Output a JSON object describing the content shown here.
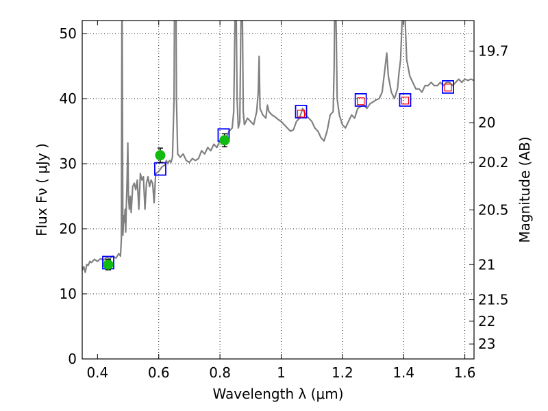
{
  "chart_data": {
    "type": "line",
    "title": "",
    "xlabel": "Wavelength  λ (μm)",
    "ylabel": "Flux  Fν  ( μJy )",
    "ylabel_right": "Magnitude (AB)",
    "xlim": [
      0.35,
      1.63
    ],
    "ylim": [
      0,
      52
    ],
    "grid": true,
    "x_ticks": [
      0.4,
      0.6,
      0.8,
      1.0,
      1.2,
      1.4,
      1.6
    ],
    "x_tick_labels": [
      "0.4",
      "0.6",
      "0.8",
      "1",
      "1.2",
      "1.4",
      "1.6"
    ],
    "y_ticks": [
      0,
      10,
      20,
      30,
      40,
      50
    ],
    "y_tick_labels": [
      "0",
      "10",
      "20",
      "30",
      "40",
      "50"
    ],
    "right_ticks": [
      {
        "label": "19.7",
        "flux": 47.3
      },
      {
        "label": "20",
        "flux": 36.3
      },
      {
        "label": "20.2",
        "flux": 30.2
      },
      {
        "label": "20.5",
        "flux": 22.9
      },
      {
        "label": "21",
        "flux": 14.5
      },
      {
        "label": "21.5",
        "flux": 9.1
      },
      {
        "label": "22",
        "flux": 5.8
      },
      {
        "label": "23",
        "flux": 2.3
      }
    ],
    "colors": {
      "spectrum": "#808080",
      "model_box": "#0000ff",
      "nir_point": "#ff0000",
      "optical_point": "#11bb11",
      "error_bar": "#000000"
    },
    "series": [
      {
        "kind": "spectrum",
        "points": [
          [
            0.35,
            13.6
          ],
          [
            0.355,
            14.2
          ],
          [
            0.36,
            13.3
          ],
          [
            0.365,
            14.5
          ],
          [
            0.37,
            14.4
          ],
          [
            0.375,
            15.0
          ],
          [
            0.38,
            14.8
          ],
          [
            0.39,
            15.3
          ],
          [
            0.4,
            15.0
          ],
          [
            0.41,
            15.4
          ],
          [
            0.42,
            15.2
          ],
          [
            0.43,
            15.6
          ],
          [
            0.44,
            15.4
          ],
          [
            0.45,
            15.8
          ],
          [
            0.46,
            15.5
          ],
          [
            0.47,
            16.2
          ],
          [
            0.475,
            15.8
          ],
          [
            0.478,
            18.5
          ],
          [
            0.48,
            60
          ],
          [
            0.483,
            19.0
          ],
          [
            0.486,
            22
          ],
          [
            0.488,
            21
          ],
          [
            0.49,
            23
          ],
          [
            0.492,
            19.5
          ],
          [
            0.494,
            23.5
          ],
          [
            0.496,
            26
          ],
          [
            0.499,
            33.2
          ],
          [
            0.501,
            25
          ],
          [
            0.504,
            23.0
          ],
          [
            0.507,
            25
          ],
          [
            0.51,
            22.5
          ],
          [
            0.515,
            26.5
          ],
          [
            0.52,
            27
          ],
          [
            0.525,
            26
          ],
          [
            0.53,
            27.5
          ],
          [
            0.535,
            23.0
          ],
          [
            0.54,
            28.5
          ],
          [
            0.545,
            27.5
          ],
          [
            0.55,
            28
          ],
          [
            0.555,
            23
          ],
          [
            0.56,
            27
          ],
          [
            0.565,
            28
          ],
          [
            0.57,
            26.5
          ],
          [
            0.575,
            27.5
          ],
          [
            0.58,
            27
          ],
          [
            0.585,
            24
          ],
          [
            0.59,
            28.5
          ],
          [
            0.6,
            28.8
          ],
          [
            0.61,
            29.5
          ],
          [
            0.62,
            29.8
          ],
          [
            0.625,
            30.5
          ],
          [
            0.63,
            30.0
          ],
          [
            0.635,
            30.5
          ],
          [
            0.64,
            30.2
          ],
          [
            0.645,
            31
          ],
          [
            0.65,
            40
          ],
          [
            0.652,
            60
          ],
          [
            0.656,
            60
          ],
          [
            0.658,
            40
          ],
          [
            0.662,
            31.5
          ],
          [
            0.67,
            31.0
          ],
          [
            0.68,
            31.5
          ],
          [
            0.69,
            30.5
          ],
          [
            0.7,
            30.2
          ],
          [
            0.71,
            30.8
          ],
          [
            0.72,
            30.5
          ],
          [
            0.73,
            30.8
          ],
          [
            0.74,
            32
          ],
          [
            0.75,
            31.5
          ],
          [
            0.76,
            32.5
          ],
          [
            0.77,
            32.0
          ],
          [
            0.78,
            33.0
          ],
          [
            0.79,
            32.5
          ],
          [
            0.8,
            33.5
          ],
          [
            0.81,
            33.0
          ],
          [
            0.82,
            34.0
          ],
          [
            0.83,
            35.0
          ],
          [
            0.84,
            35.5
          ],
          [
            0.845,
            38
          ],
          [
            0.848,
            48
          ],
          [
            0.852,
            60
          ],
          [
            0.856,
            40
          ],
          [
            0.86,
            35.5
          ],
          [
            0.865,
            36.5
          ],
          [
            0.868,
            50
          ],
          [
            0.872,
            60
          ],
          [
            0.876,
            38
          ],
          [
            0.88,
            36.0
          ],
          [
            0.89,
            37.0
          ],
          [
            0.9,
            36.5
          ],
          [
            0.91,
            36.0
          ],
          [
            0.92,
            38.0
          ],
          [
            0.925,
            41
          ],
          [
            0.928,
            46.5
          ],
          [
            0.931,
            38.5
          ],
          [
            0.94,
            37.5
          ],
          [
            0.95,
            37.0
          ],
          [
            0.955,
            39
          ],
          [
            0.96,
            38.0
          ],
          [
            0.97,
            37.5
          ],
          [
            0.98,
            37.2
          ],
          [
            0.99,
            36.8
          ],
          [
            1.0,
            36.5
          ],
          [
            1.01,
            36.0
          ],
          [
            1.02,
            35.5
          ],
          [
            1.03,
            35.0
          ],
          [
            1.04,
            35.2
          ],
          [
            1.05,
            36.5
          ],
          [
            1.06,
            37.0
          ],
          [
            1.07,
            38.5
          ],
          [
            1.08,
            37.5
          ],
          [
            1.09,
            37.0
          ],
          [
            1.1,
            36.5
          ],
          [
            1.11,
            35.5
          ],
          [
            1.12,
            35.0
          ],
          [
            1.13,
            34.0
          ],
          [
            1.14,
            33.5
          ],
          [
            1.15,
            35.0
          ],
          [
            1.16,
            37.5
          ],
          [
            1.17,
            38.0
          ],
          [
            1.173,
            45
          ],
          [
            1.176,
            60
          ],
          [
            1.18,
            50
          ],
          [
            1.183,
            40
          ],
          [
            1.19,
            37.5
          ],
          [
            1.2,
            36.0
          ],
          [
            1.21,
            35.5
          ],
          [
            1.22,
            36.5
          ],
          [
            1.23,
            37.5
          ],
          [
            1.24,
            37.0
          ],
          [
            1.25,
            38.5
          ],
          [
            1.26,
            38.8
          ],
          [
            1.27,
            39.0
          ],
          [
            1.28,
            38.5
          ],
          [
            1.29,
            39.2
          ],
          [
            1.3,
            39.5
          ],
          [
            1.31,
            39.8
          ],
          [
            1.32,
            40.0
          ],
          [
            1.33,
            41.0
          ],
          [
            1.34,
            45.0
          ],
          [
            1.345,
            47.0
          ],
          [
            1.35,
            43.5
          ],
          [
            1.36,
            41.0
          ],
          [
            1.37,
            40.0
          ],
          [
            1.38,
            41.5
          ],
          [
            1.385,
            44
          ],
          [
            1.39,
            46
          ],
          [
            1.393,
            49.5
          ],
          [
            1.396,
            53
          ],
          [
            1.4,
            60
          ],
          [
            1.405,
            52
          ],
          [
            1.41,
            46
          ],
          [
            1.42,
            43.5
          ],
          [
            1.43,
            42.5
          ],
          [
            1.44,
            41.5
          ],
          [
            1.45,
            41.5
          ],
          [
            1.46,
            41.0
          ],
          [
            1.47,
            42.0
          ],
          [
            1.48,
            42.0
          ],
          [
            1.49,
            42.5
          ],
          [
            1.5,
            42.0
          ],
          [
            1.51,
            42.0
          ],
          [
            1.52,
            42.5
          ],
          [
            1.53,
            42.0
          ],
          [
            1.54,
            42.5
          ],
          [
            1.55,
            42.5
          ],
          [
            1.56,
            42.0
          ],
          [
            1.57,
            42.5
          ],
          [
            1.58,
            43.0
          ],
          [
            1.59,
            42.5
          ],
          [
            1.6,
            43.0
          ],
          [
            1.61,
            42.8
          ],
          [
            1.62,
            43.0
          ],
          [
            1.63,
            42.8
          ]
        ]
      },
      {
        "kind": "model_boxes",
        "points": [
          [
            0.435,
            14.8
          ],
          [
            0.605,
            29.2
          ],
          [
            0.812,
            34.4
          ],
          [
            1.065,
            38.0
          ],
          [
            1.26,
            39.8
          ],
          [
            1.405,
            39.8
          ],
          [
            1.545,
            41.8
          ]
        ]
      },
      {
        "kind": "nir_points",
        "points": [
          [
            1.065,
            37.7
          ],
          [
            1.26,
            39.6
          ],
          [
            1.405,
            39.7
          ],
          [
            1.545,
            41.7
          ]
        ]
      },
      {
        "kind": "optical_points",
        "points": [
          {
            "x": 0.435,
            "y": 14.5,
            "err": 0.8
          },
          {
            "x": 0.605,
            "y": 31.3,
            "err": 1.1
          },
          {
            "x": 0.815,
            "y": 33.6,
            "err": 1.0
          }
        ]
      }
    ]
  }
}
